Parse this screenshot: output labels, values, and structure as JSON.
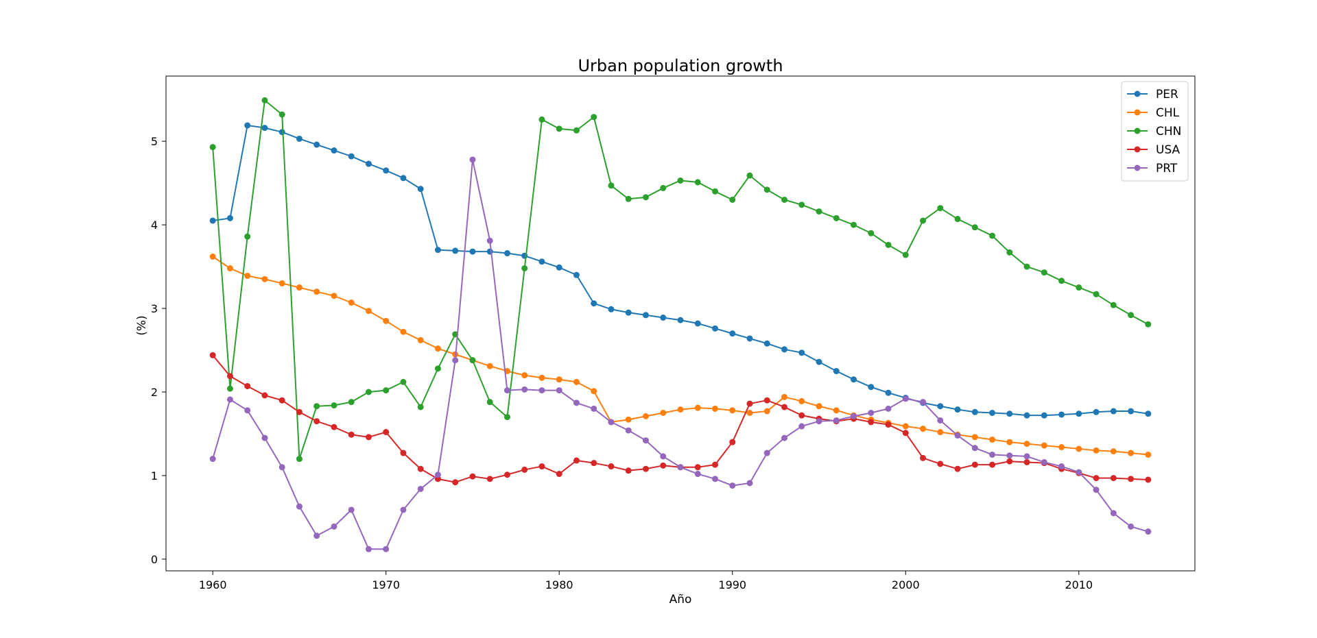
{
  "chart_data": {
    "type": "line",
    "title": "Urban population growth",
    "xlabel": "Año",
    "ylabel": "(%)",
    "xlim": [
      1957.3,
      2016.7
    ],
    "ylim": [
      -0.14,
      5.78
    ],
    "xticks": [
      1960,
      1970,
      1980,
      1990,
      2000,
      2010
    ],
    "yticks": [
      0,
      1,
      2,
      3,
      4,
      5
    ],
    "grid": false,
    "legend_position": "top-right",
    "x": [
      1960,
      1961,
      1962,
      1963,
      1964,
      1965,
      1966,
      1967,
      1968,
      1969,
      1970,
      1971,
      1972,
      1973,
      1974,
      1975,
      1976,
      1977,
      1978,
      1979,
      1980,
      1981,
      1982,
      1983,
      1984,
      1985,
      1986,
      1987,
      1988,
      1989,
      1990,
      1991,
      1992,
      1993,
      1994,
      1995,
      1996,
      1997,
      1998,
      1999,
      2000,
      2001,
      2002,
      2003,
      2004,
      2005,
      2006,
      2007,
      2008,
      2009,
      2010,
      2011,
      2012,
      2013,
      2014
    ],
    "series": [
      {
        "name": "PER",
        "color": "#1f77b4",
        "values": [
          4.05,
          4.08,
          5.19,
          5.16,
          5.11,
          5.03,
          4.96,
          4.89,
          4.82,
          4.73,
          4.65,
          4.56,
          4.43,
          3.7,
          3.69,
          3.68,
          3.68,
          3.66,
          3.63,
          3.56,
          3.49,
          3.4,
          3.06,
          2.99,
          2.95,
          2.92,
          2.89,
          2.86,
          2.82,
          2.76,
          2.7,
          2.64,
          2.58,
          2.51,
          2.47,
          2.36,
          2.25,
          2.15,
          2.06,
          1.99,
          1.93,
          1.87,
          1.83,
          1.79,
          1.76,
          1.75,
          1.74,
          1.72,
          1.72,
          1.73,
          1.74,
          1.76,
          1.77,
          1.77,
          1.74
        ]
      },
      {
        "name": "CHL",
        "color": "#ff7f0e",
        "values": [
          3.62,
          3.48,
          3.39,
          3.35,
          3.3,
          3.25,
          3.2,
          3.15,
          3.07,
          2.97,
          2.85,
          2.72,
          2.62,
          2.52,
          2.45,
          2.38,
          2.31,
          2.25,
          2.2,
          2.17,
          2.15,
          2.12,
          2.01,
          1.64,
          1.67,
          1.71,
          1.75,
          1.79,
          1.81,
          1.8,
          1.78,
          1.75,
          1.77,
          1.94,
          1.89,
          1.83,
          1.78,
          1.72,
          1.67,
          1.63,
          1.59,
          1.56,
          1.52,
          1.49,
          1.46,
          1.43,
          1.4,
          1.38,
          1.36,
          1.34,
          1.32,
          1.3,
          1.29,
          1.27,
          1.25
        ]
      },
      {
        "name": "CHN",
        "color": "#2ca02c",
        "values": [
          4.93,
          2.04,
          3.86,
          5.49,
          5.32,
          1.2,
          1.83,
          1.84,
          1.88,
          2.0,
          2.02,
          2.12,
          1.82,
          2.28,
          2.69,
          2.38,
          1.88,
          1.7,
          3.48,
          5.26,
          5.15,
          5.13,
          5.29,
          4.47,
          4.31,
          4.33,
          4.44,
          4.53,
          4.51,
          4.4,
          4.3,
          4.59,
          4.42,
          4.3,
          4.24,
          4.16,
          4.08,
          4.0,
          3.9,
          3.76,
          3.64,
          4.05,
          4.2,
          4.07,
          3.97,
          3.87,
          3.67,
          3.5,
          3.43,
          3.33,
          3.25,
          3.17,
          3.04,
          2.92,
          2.81
        ]
      },
      {
        "name": "USA",
        "color": "#d62728",
        "values": [
          2.44,
          2.19,
          2.07,
          1.96,
          1.9,
          1.76,
          1.65,
          1.58,
          1.49,
          1.46,
          1.52,
          1.27,
          1.08,
          0.96,
          0.92,
          0.99,
          0.96,
          1.01,
          1.07,
          1.11,
          1.02,
          1.18,
          1.15,
          1.11,
          1.06,
          1.08,
          1.12,
          1.1,
          1.1,
          1.13,
          1.4,
          1.86,
          1.9,
          1.82,
          1.72,
          1.68,
          1.65,
          1.68,
          1.64,
          1.61,
          1.51,
          1.21,
          1.14,
          1.08,
          1.13,
          1.13,
          1.17,
          1.16,
          1.15,
          1.08,
          1.03,
          0.97,
          0.97,
          0.96,
          0.95
        ]
      },
      {
        "name": "PRT",
        "color": "#9467bd",
        "values": [
          1.2,
          1.91,
          1.78,
          1.45,
          1.1,
          0.63,
          0.28,
          0.39,
          0.59,
          0.12,
          0.12,
          0.59,
          0.84,
          1.01,
          2.38,
          4.78,
          3.81,
          2.02,
          2.03,
          2.02,
          2.02,
          1.87,
          1.8,
          1.64,
          1.54,
          1.42,
          1.23,
          1.1,
          1.02,
          0.96,
          0.88,
          0.91,
          1.27,
          1.45,
          1.59,
          1.65,
          1.66,
          1.71,
          1.75,
          1.8,
          1.92,
          1.88,
          1.66,
          1.48,
          1.33,
          1.25,
          1.24,
          1.23,
          1.16,
          1.11,
          1.04,
          0.83,
          0.55,
          0.39,
          0.33
        ]
      }
    ]
  }
}
